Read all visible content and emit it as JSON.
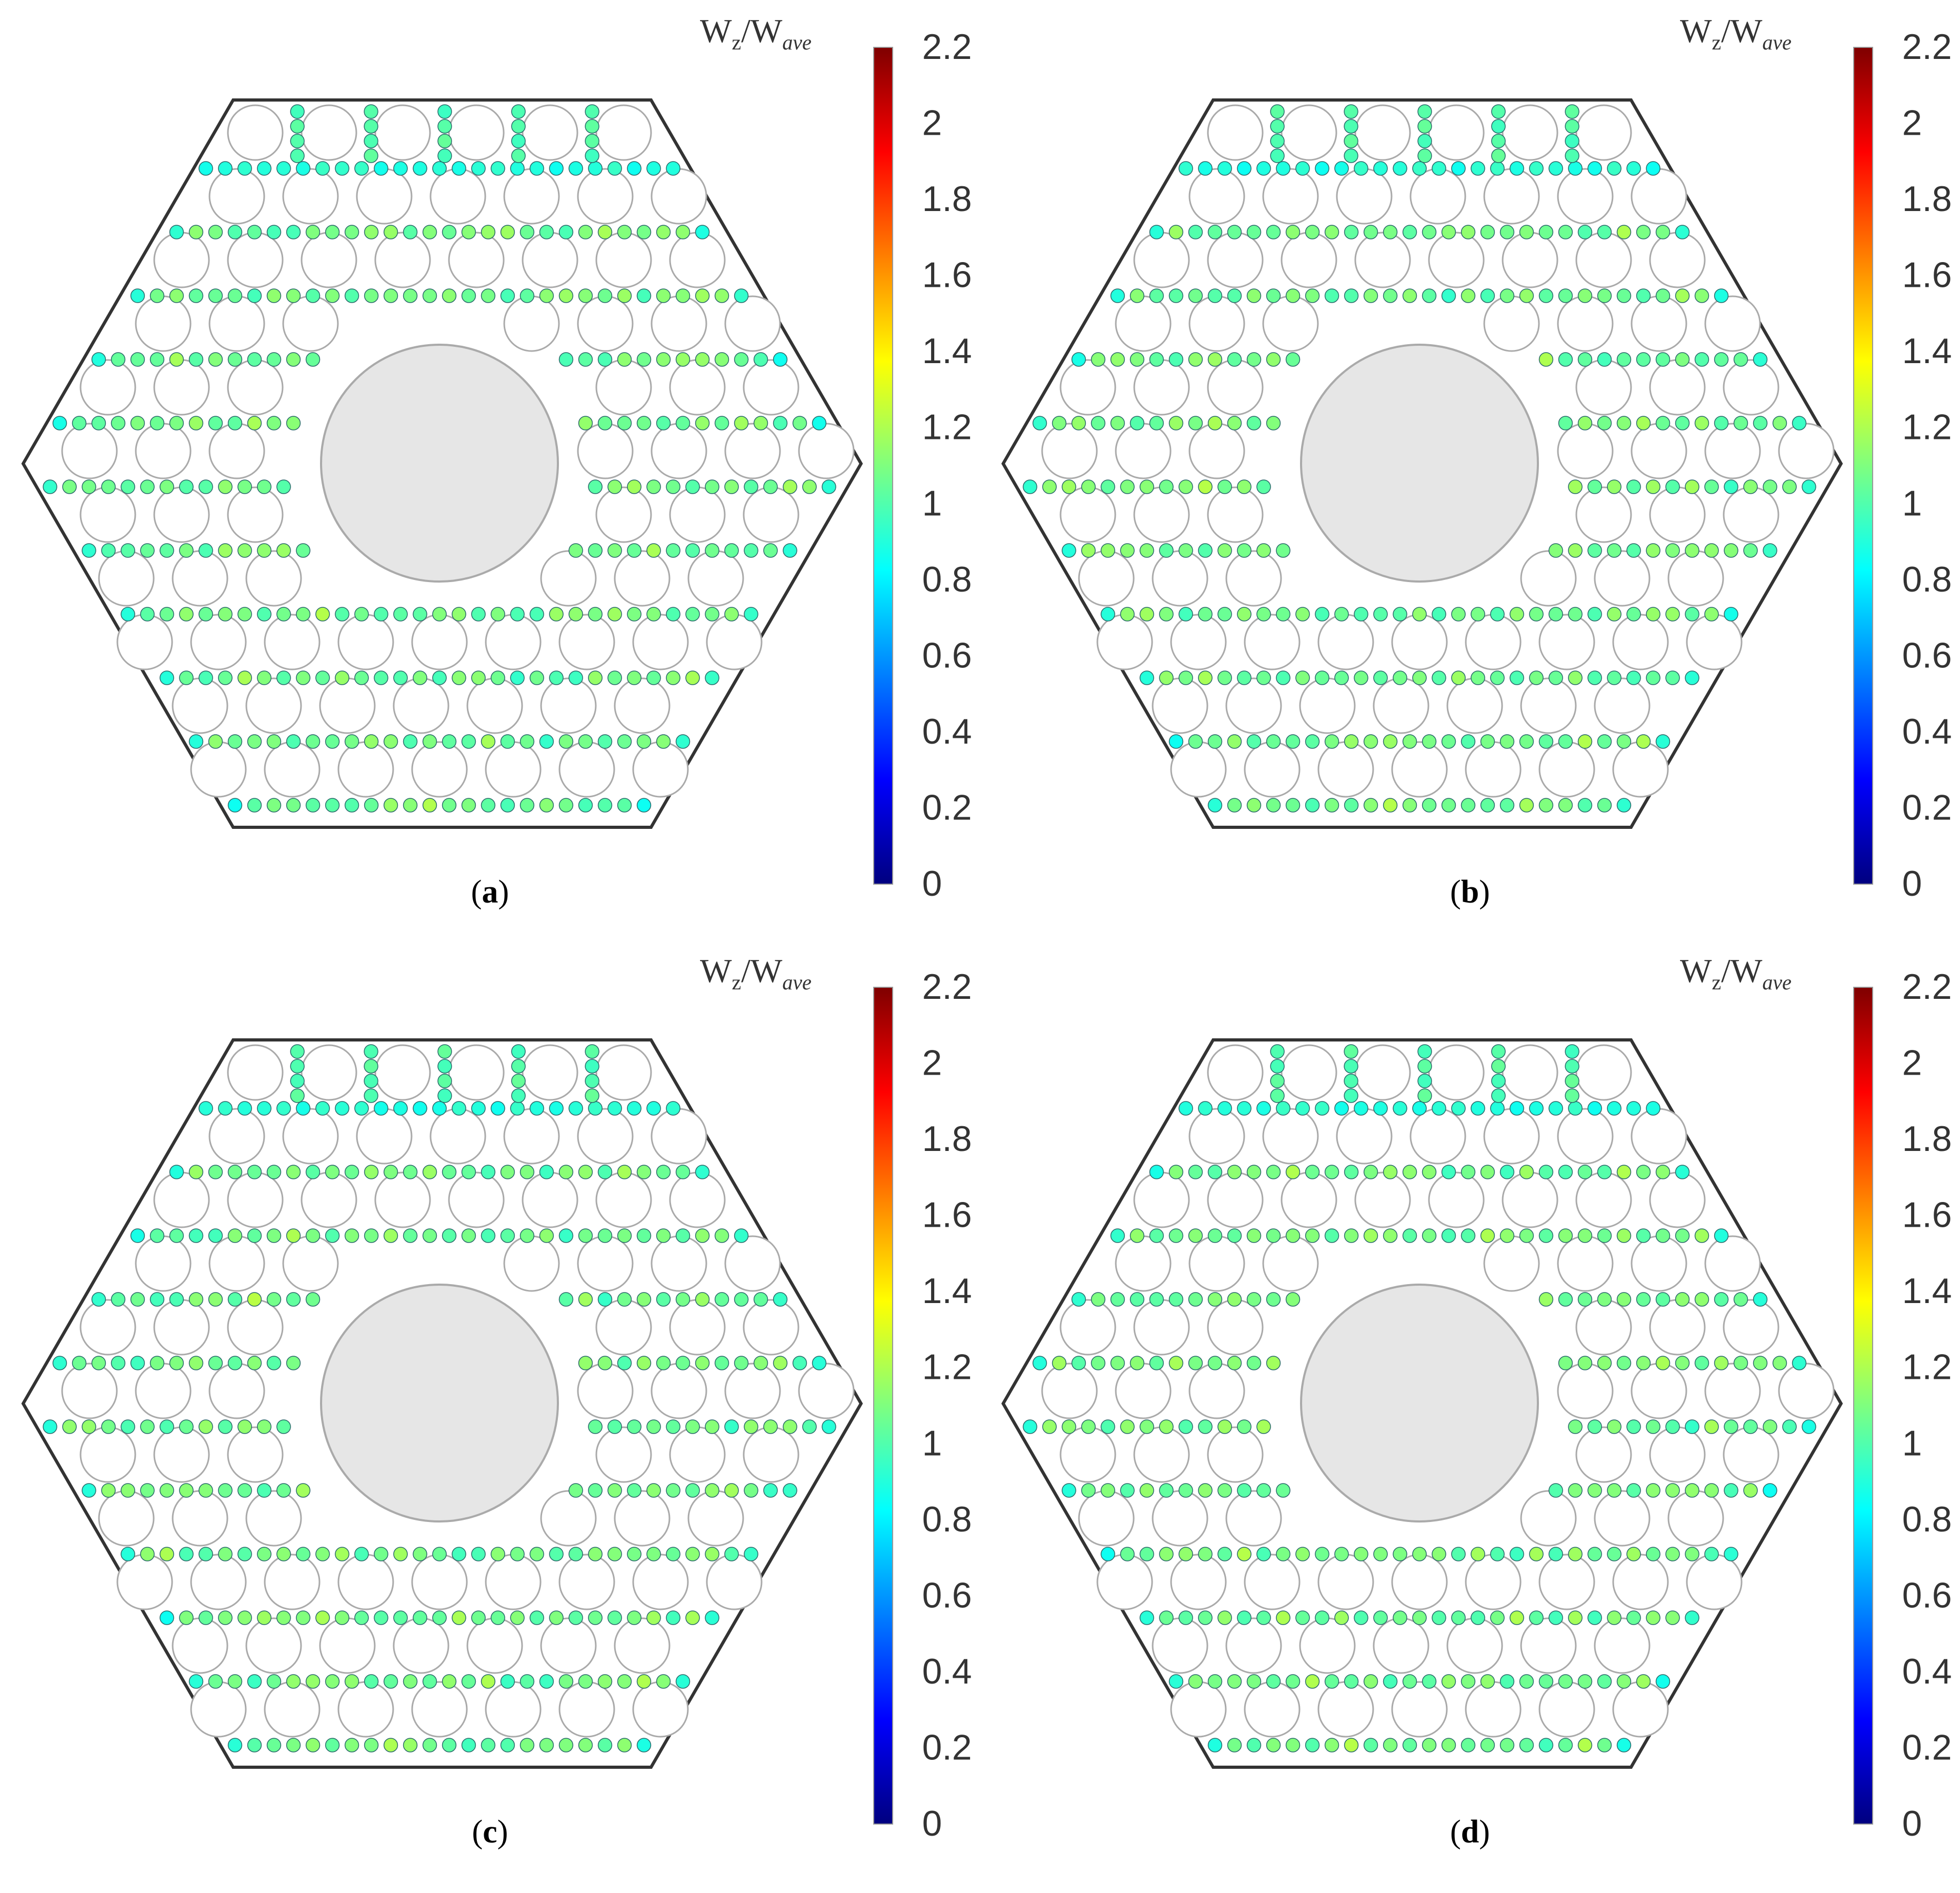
{
  "colorbar": {
    "title_main": "W",
    "title_sub": "z",
    "title_sep": "/W",
    "title_sub2": "ave",
    "ticks": [
      "2.2",
      "2",
      "1.8",
      "1.6",
      "1.4",
      "1.2",
      "1",
      "0.8",
      "0.6",
      "0.4",
      "0.2",
      "0"
    ],
    "min": 0,
    "max": 2.2
  },
  "panels": [
    {
      "id": "a",
      "label": "a",
      "variant": 0
    },
    {
      "id": "b",
      "label": "b",
      "variant": 1
    },
    {
      "id": "c",
      "label": "c",
      "variant": 2
    },
    {
      "id": "d",
      "label": "d",
      "variant": 3
    }
  ],
  "colors": {
    "hexagon_stroke": "#333333",
    "rod_stroke": "#aaaaaa",
    "center_fill": "#e6e6e6",
    "colormap": [
      "#00007f",
      "#0000ff",
      "#007fff",
      "#00ffff",
      "#7fff7f",
      "#ffff00",
      "#ff7f00",
      "#ff0000",
      "#7f0000"
    ]
  }
}
